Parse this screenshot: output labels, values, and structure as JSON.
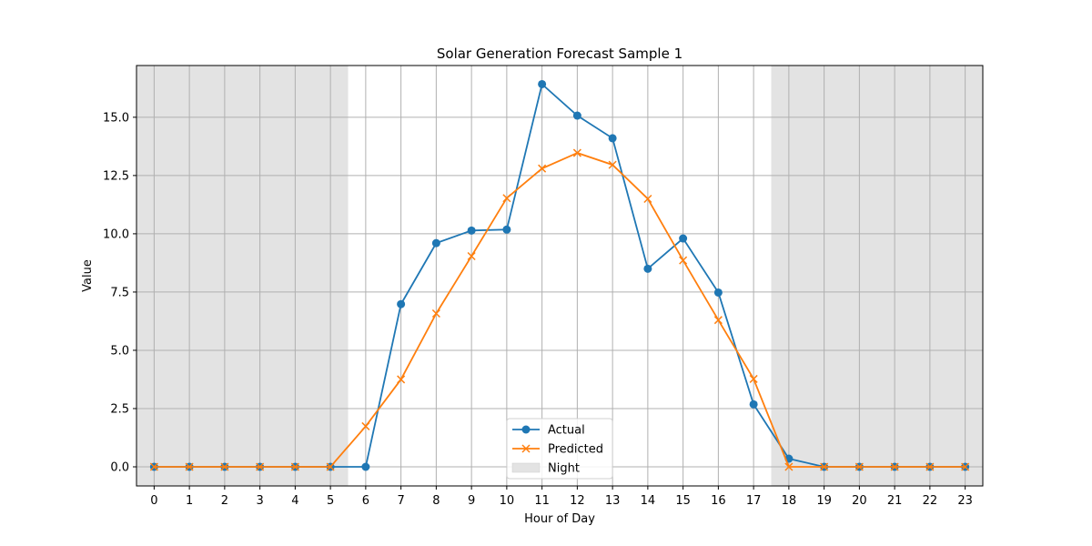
{
  "chart_data": {
    "type": "line",
    "title": "Solar Generation Forecast Sample 1",
    "xlabel": "Hour of Day",
    "ylabel": "Value",
    "xlim": [
      -0.5,
      23.5
    ],
    "ylim": [
      -0.82,
      17.22
    ],
    "x": [
      0,
      1,
      2,
      3,
      4,
      5,
      6,
      7,
      8,
      9,
      10,
      11,
      12,
      13,
      14,
      15,
      16,
      17,
      18,
      19,
      20,
      21,
      22,
      23
    ],
    "x_ticks": [
      "0",
      "1",
      "2",
      "3",
      "4",
      "5",
      "6",
      "7",
      "8",
      "9",
      "10",
      "11",
      "12",
      "13",
      "14",
      "15",
      "16",
      "17",
      "18",
      "19",
      "20",
      "21",
      "22",
      "23"
    ],
    "y_ticks": [
      0.0,
      2.5,
      5.0,
      7.5,
      10.0,
      12.5,
      15.0
    ],
    "y_tick_labels": [
      "0.0",
      "2.5",
      "5.0",
      "7.5",
      "10.0",
      "12.5",
      "15.0"
    ],
    "grid": true,
    "legend_position": "bottom-center",
    "series": [
      {
        "name": "Actual",
        "color": "#1f77b4",
        "marker": "circle",
        "values": [
          0,
          0,
          0,
          0,
          0,
          0,
          0,
          6.98,
          9.6,
          10.14,
          10.18,
          16.42,
          15.07,
          14.1,
          8.5,
          9.8,
          7.48,
          2.68,
          0.35,
          0,
          0,
          0,
          0,
          0
        ]
      },
      {
        "name": "Predicted",
        "color": "#ff7f0e",
        "marker": "x",
        "values": [
          0,
          0,
          0,
          0,
          0,
          0,
          1.74,
          3.75,
          6.58,
          9.04,
          11.53,
          12.8,
          13.47,
          12.96,
          11.5,
          8.86,
          6.3,
          3.77,
          0,
          0,
          0,
          0,
          0,
          0
        ]
      }
    ],
    "shaded_regions": [
      {
        "name": "Night",
        "from": -0.5,
        "to": 5.5,
        "color": "#e3e3e3"
      },
      {
        "name": "Night",
        "from": 17.5,
        "to": 23.5,
        "color": "#e3e3e3"
      }
    ],
    "legend": [
      {
        "label": "Actual",
        "kind": "line-circle",
        "color": "#1f77b4"
      },
      {
        "label": "Predicted",
        "kind": "line-x",
        "color": "#ff7f0e"
      },
      {
        "label": "Night",
        "kind": "patch",
        "color": "#e3e3e3"
      }
    ]
  }
}
